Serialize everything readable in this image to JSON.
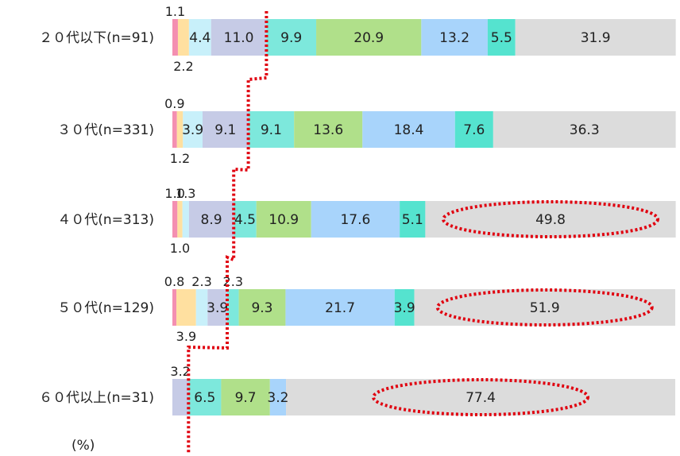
{
  "chart_data": {
    "type": "bar",
    "orientation": "horizontal",
    "stacked": true,
    "unit_label": "(%)",
    "categories": [
      "２０代以下(n=91)",
      "３０代(n=331)",
      "４０代(n=313)",
      "５０代(n=129)",
      "６０代以上(n=31)"
    ],
    "series": [
      {
        "color": "#f48fb1",
        "values": [
          1.1,
          0.9,
          1.0,
          0.8,
          0.0
        ]
      },
      {
        "color": "#ffe0a0",
        "values": [
          2.2,
          1.2,
          1.0,
          3.9,
          0.0
        ]
      },
      {
        "color": "#c8f0fa",
        "values": [
          4.4,
          3.9,
          1.3,
          2.3,
          0.0
        ]
      },
      {
        "color": "#c6cbe6",
        "values": [
          11.0,
          9.1,
          8.9,
          3.9,
          3.2
        ]
      },
      {
        "color": "#7de8dc",
        "values": [
          9.9,
          9.1,
          4.5,
          2.3,
          6.5
        ]
      },
      {
        "color": "#b0e08a",
        "values": [
          20.9,
          13.6,
          10.9,
          9.3,
          9.7
        ]
      },
      {
        "color": "#a8d4fb",
        "values": [
          13.2,
          18.4,
          17.6,
          21.7,
          3.2
        ]
      },
      {
        "color": "#55e3cf",
        "values": [
          5.5,
          7.6,
          5.1,
          3.9,
          0.0
        ]
      },
      {
        "color": "#dcdcdc",
        "values": [
          31.9,
          36.3,
          49.8,
          51.9,
          77.4
        ]
      }
    ],
    "segment_labels": [
      [
        "",
        "",
        "4.4",
        "11.0",
        "9.9",
        "20.9",
        "13.2",
        "5.5",
        "31.9"
      ],
      [
        "",
        "",
        "3.9",
        "9.1",
        "9.1",
        "13.6",
        "18.4",
        "7.6",
        "36.3"
      ],
      [
        "",
        "",
        "",
        "8.9",
        "4.5",
        "10.9",
        "17.6",
        "5.1",
        "49.8"
      ],
      [
        "",
        "",
        "",
        "3.9",
        "",
        "9.3",
        "21.7",
        "3.9",
        "51.9"
      ],
      [
        "",
        "",
        "",
        "",
        "6.5",
        "9.7",
        "3.2",
        "",
        "77.4"
      ]
    ],
    "outside_labels": [
      {
        "row": 0,
        "series": 0,
        "pos": "above",
        "text": "1.1"
      },
      {
        "row": 0,
        "series": 1,
        "pos": "below",
        "text": "2.2"
      },
      {
        "row": 1,
        "series": 0,
        "pos": "above",
        "text": "0.9"
      },
      {
        "row": 1,
        "series": 1,
        "pos": "below",
        "text": "1.2"
      },
      {
        "row": 2,
        "series": 0,
        "pos": "above",
        "text": "1.0"
      },
      {
        "row": 2,
        "series": 2,
        "pos": "above",
        "text": "1.3"
      },
      {
        "row": 2,
        "series": 1,
        "pos": "below",
        "text": "1.0"
      },
      {
        "row": 3,
        "series": 0,
        "pos": "above",
        "text": "0.8"
      },
      {
        "row": 3,
        "series": 2,
        "pos": "above",
        "text": "2.3"
      },
      {
        "row": 3,
        "series": 4,
        "pos": "above",
        "text": "2.3"
      },
      {
        "row": 3,
        "series": 1,
        "pos": "below",
        "text": "3.9"
      },
      {
        "row": 4,
        "series": 3,
        "pos": "above",
        "text": "3.2"
      }
    ],
    "highlight_series_index": 8,
    "highlight_rows": [
      2,
      3,
      4
    ],
    "highlight_color": "#e0000f",
    "boundary_after_series": 3,
    "xlim": [
      0,
      100
    ]
  }
}
